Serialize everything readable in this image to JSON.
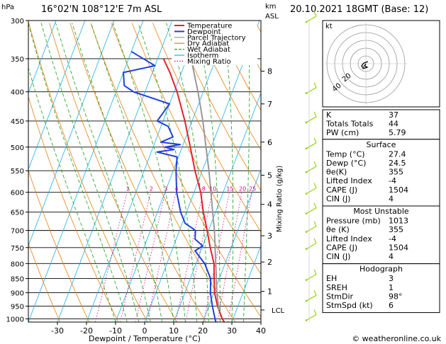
{
  "header": {
    "location": "16°02'N  108°12'E  7m  ASL",
    "datetime": "20.10.2021  18GMT  (Base: 12)",
    "hpa_label": "hPa",
    "km_label": "km",
    "asl_label": "ASL",
    "mixing_ratio_label": "Mixing Ratio (g/kg)",
    "x_axis_label": "Dewpoint / Temperature (°C)",
    "credit": "© weatheronline.co.uk"
  },
  "legend": [
    {
      "name": "Temperature",
      "color": "#e8202a"
    },
    {
      "name": "Dewpoint",
      "color": "#1f3fe0"
    },
    {
      "name": "Parcel Trajectory",
      "color": "#999999"
    },
    {
      "name": "Dry Adiabat",
      "color": "#e8800a"
    },
    {
      "name": "Wet Adiabat",
      "color": "#1aa01a"
    },
    {
      "name": "Isotherm",
      "color": "#1ab0e8"
    },
    {
      "name": "Mixing Ratio",
      "color": "#e0008a"
    }
  ],
  "chart_data": {
    "type": "line",
    "skew_t": true,
    "x_ticks": [
      -30,
      -20,
      -10,
      0,
      10,
      20,
      30,
      40
    ],
    "pressure_levels": [
      300,
      350,
      400,
      450,
      500,
      550,
      600,
      650,
      700,
      750,
      800,
      850,
      900,
      950,
      1000
    ],
    "km_ticks": [
      {
        "label": "8",
        "p": 368
      },
      {
        "label": "7",
        "p": 420
      },
      {
        "label": "6",
        "p": 490
      },
      {
        "label": "5",
        "p": 560
      },
      {
        "label": "4",
        "p": 630
      },
      {
        "label": "3",
        "p": 715
      },
      {
        "label": "2",
        "p": 795
      },
      {
        "label": "1",
        "p": 895
      }
    ],
    "lcl": {
      "label": "LCL",
      "p": 965
    },
    "mixing_ratio_labels": [
      "1",
      "2",
      "3",
      "4",
      "8",
      "10",
      "15",
      "20",
      "25"
    ],
    "mixing_ratio_values": [
      1,
      2,
      3,
      4,
      8,
      10,
      15,
      20,
      25
    ],
    "series": [
      {
        "name": "Temperature",
        "points": [
          [
            1013,
            27.4
          ],
          [
            1000,
            26.3
          ],
          [
            950,
            23.0
          ],
          [
            900,
            20.2
          ],
          [
            850,
            18.2
          ],
          [
            800,
            16.2
          ],
          [
            750,
            12.8
          ],
          [
            700,
            9.5
          ],
          [
            650,
            5.8
          ],
          [
            600,
            2.3
          ],
          [
            550,
            -2.5
          ],
          [
            500,
            -7.2
          ],
          [
            450,
            -12.5
          ],
          [
            400,
            -19.0
          ],
          [
            370,
            -24.0
          ],
          [
            350,
            -28.0
          ]
        ]
      },
      {
        "name": "Dewpoint",
        "points": [
          [
            1013,
            24.5
          ],
          [
            1000,
            23.8
          ],
          [
            950,
            21.2
          ],
          [
            900,
            18.8
          ],
          [
            850,
            17.0
          ],
          [
            800,
            13.0
          ],
          [
            760,
            8.0
          ],
          [
            745,
            10.0
          ],
          [
            725,
            6.5
          ],
          [
            700,
            5.5
          ],
          [
            680,
            1.0
          ],
          [
            650,
            -2.0
          ],
          [
            600,
            -6.0
          ],
          [
            550,
            -9.0
          ],
          [
            520,
            -10.5
          ],
          [
            510,
            -18.0
          ],
          [
            505,
            -12.5
          ],
          [
            500,
            -16.0
          ],
          [
            495,
            -11.0
          ],
          [
            490,
            -18.0
          ],
          [
            480,
            -14.5
          ],
          [
            460,
            -17.5
          ],
          [
            450,
            -22.0
          ],
          [
            420,
            -20.0
          ],
          [
            400,
            -34.0
          ],
          [
            390,
            -38.0
          ],
          [
            370,
            -40.0
          ],
          [
            360,
            -30.0
          ],
          [
            340,
            -40.0
          ]
        ]
      },
      {
        "name": "Parcel Trajectory",
        "points": [
          [
            965,
            24.0
          ],
          [
            900,
            21.0
          ],
          [
            850,
            19.0
          ],
          [
            800,
            16.8
          ],
          [
            750,
            14.5
          ],
          [
            700,
            12.0
          ],
          [
            650,
            9.0
          ],
          [
            600,
            5.8
          ],
          [
            550,
            2.3
          ],
          [
            500,
            -1.8
          ],
          [
            450,
            -6.3
          ],
          [
            400,
            -11.8
          ],
          [
            350,
            -18.5
          ],
          [
            300,
            -26.5
          ]
        ]
      }
    ],
    "wind_barbs": [
      {
        "p": 300
      },
      {
        "p": 400
      },
      {
        "p": 450
      },
      {
        "p": 500
      },
      {
        "p": 550
      },
      {
        "p": 600
      },
      {
        "p": 650
      },
      {
        "p": 700
      },
      {
        "p": 750
      },
      {
        "p": 850
      },
      {
        "p": 925
      },
      {
        "p": 1000
      }
    ]
  },
  "hodograph": {
    "unit": "kt",
    "ring_labels": [
      "40",
      "20"
    ]
  },
  "indices": [
    {
      "label": "K",
      "value": "37"
    },
    {
      "label": "Totals Totals",
      "value": "44"
    },
    {
      "label": "PW (cm)",
      "value": "5.79"
    }
  ],
  "surface": {
    "title": "Surface",
    "rows": [
      {
        "label": "Temp (°C)",
        "value": "27.4"
      },
      {
        "label": "Dewp (°C)",
        "value": "24.5"
      },
      {
        "label": "θe(K)",
        "value": "355"
      },
      {
        "label": "Lifted Index",
        "value": "-4"
      },
      {
        "label": "CAPE (J)",
        "value": "1504"
      },
      {
        "label": "CIN (J)",
        "value": "4"
      }
    ]
  },
  "most_unstable": {
    "title": "Most Unstable",
    "rows": [
      {
        "label": "Pressure (mb)",
        "value": "1013"
      },
      {
        "label": "θe (K)",
        "value": "355"
      },
      {
        "label": "Lifted Index",
        "value": "-4"
      },
      {
        "label": "CAPE (J)",
        "value": "1504"
      },
      {
        "label": "CIN (J)",
        "value": "4"
      }
    ]
  },
  "hodograph_table": {
    "title": "Hodograph",
    "rows": [
      {
        "label": "EH",
        "value": "3"
      },
      {
        "label": "SREH",
        "value": "1"
      },
      {
        "label": "StmDir",
        "value": "98°"
      },
      {
        "label": "StmSpd (kt)",
        "value": "6"
      }
    ]
  }
}
